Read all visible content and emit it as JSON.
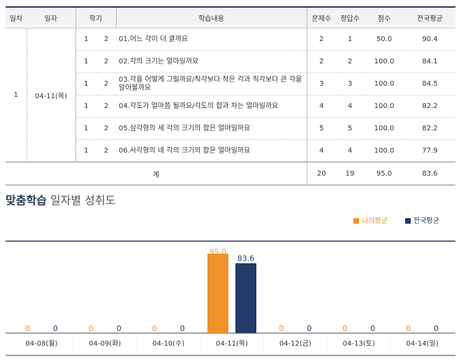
{
  "table": {
    "headers": [
      "일차",
      "일자",
      "학기",
      "",
      "학습내용",
      "문제수",
      "정답수",
      "점수",
      "전국평균"
    ],
    "day": "1",
    "date": "04-11(목)",
    "rows": [
      {
        "a": "1",
        "b": "2",
        "content": "01.어느 각이 더 클까요",
        "q": "2",
        "c": "1",
        "score": "50.0",
        "avg": "90.4"
      },
      {
        "a": "1",
        "b": "2",
        "content": "02.각의 크기는 얼마일까요",
        "q": "2",
        "c": "2",
        "score": "100.0",
        "avg": "84.1"
      },
      {
        "a": "1",
        "b": "2",
        "content": "03.각을 어떻게 그릴까요/직각보다 작은 각과 직각보다 큰 각을 알아볼까요",
        "q": "3",
        "c": "3",
        "score": "100.0",
        "avg": "84.5"
      },
      {
        "a": "1",
        "b": "2",
        "content": "04.각도가 얼마쯤 될까요/각도의 합과 차는 얼마일까요",
        "q": "4",
        "c": "4",
        "score": "100.0",
        "avg": "82.2"
      },
      {
        "a": "1",
        "b": "2",
        "content": "05.삼각형의 세 각의 크기의 합은 얼마일까요",
        "q": "5",
        "c": "5",
        "score": "100.0",
        "avg": "82.2"
      },
      {
        "a": "1",
        "b": "2",
        "content": "06.사각형의 네 각의 크기의 합은 얼마일까요",
        "q": "4",
        "c": "4",
        "score": "100.0",
        "avg": "77.9"
      }
    ],
    "total": {
      "label": "계",
      "q": "20",
      "c": "19",
      "score": "95.0",
      "avg": "83.6"
    }
  },
  "chart_title_bold": "맞춤학습",
  "chart_title_rest": "일자별 성취도",
  "colors": {
    "mine": "#f0922b",
    "national": "#233a6a"
  },
  "chart_data": {
    "type": "bar",
    "categories": [
      "04-08(월)",
      "04-09(화)",
      "04-10(수)",
      "04-11(목)",
      "04-12(금)",
      "04-13(토)",
      "04-14(일)"
    ],
    "series": [
      {
        "name": "나의평균",
        "values": [
          0,
          0,
          0,
          95.0,
          0,
          0,
          0
        ]
      },
      {
        "name": "전국평균",
        "values": [
          0,
          0,
          0,
          83.6,
          0,
          0,
          0
        ]
      }
    ],
    "value_labels": [
      [
        "0",
        "0",
        "0",
        "95.0",
        "0",
        "0",
        "0"
      ],
      [
        "0",
        "0",
        "0",
        "83.6",
        "0",
        "0",
        "0"
      ]
    ],
    "ylim": [
      0,
      100
    ],
    "grid": false,
    "legend_position": "top-right",
    "xlabel": "",
    "ylabel": ""
  }
}
